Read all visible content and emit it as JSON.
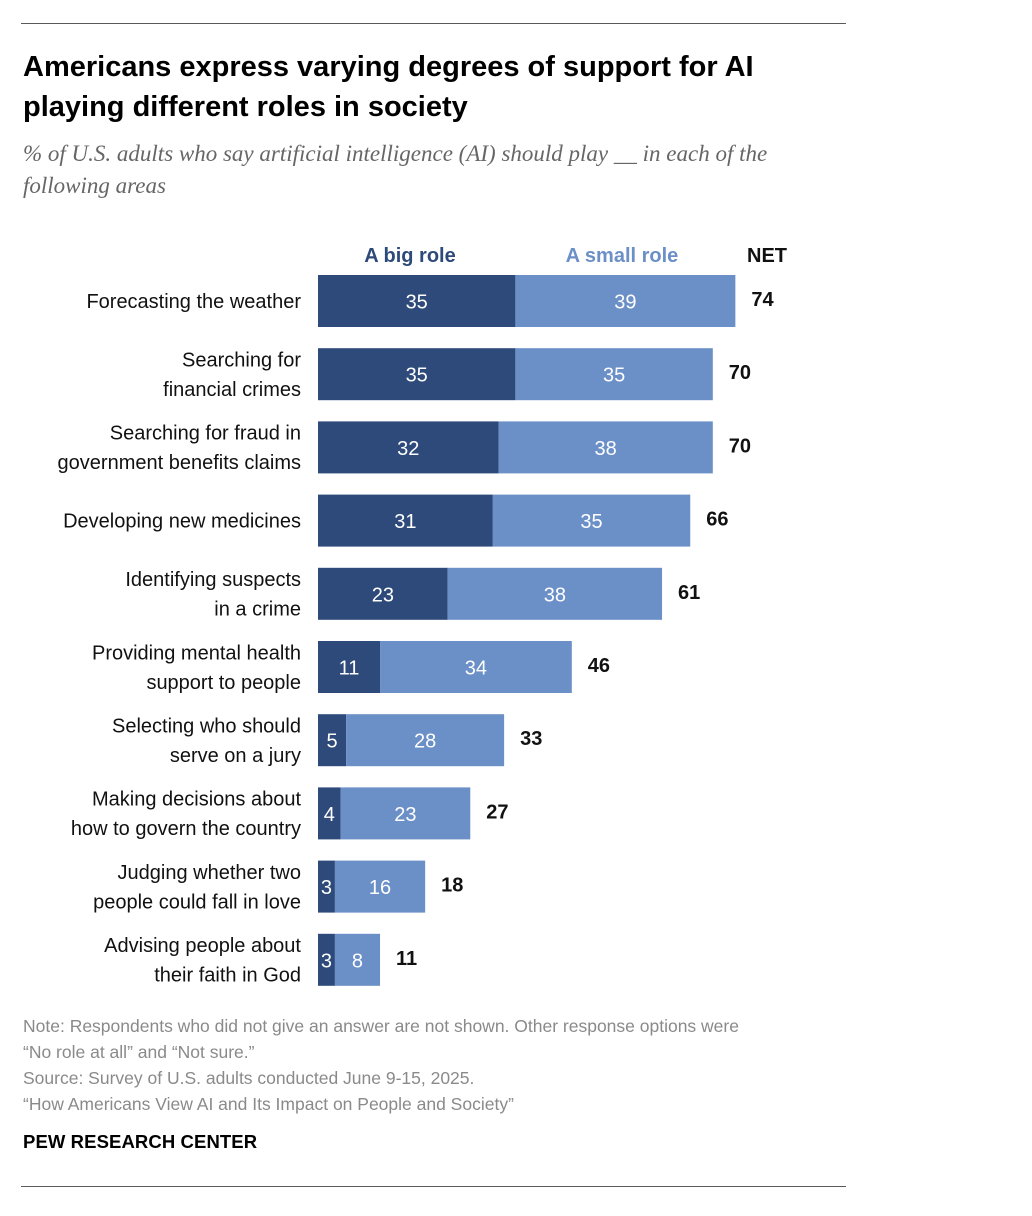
{
  "title": "Americans express varying degrees of support for AI playing different roles in society",
  "subtitle": "% of U.S. adults who say artificial intelligence (AI) should play __ in each of the following areas",
  "chart_data": {
    "type": "bar",
    "orientation": "horizontal",
    "stacked": true,
    "categories": [
      [
        "Forecasting the weather"
      ],
      [
        "Searching for",
        "financial crimes"
      ],
      [
        "Searching for fraud in",
        "government benefits claims"
      ],
      [
        "Developing new medicines"
      ],
      [
        "Identifying suspects",
        "in a crime"
      ],
      [
        "Providing mental health",
        "support to people"
      ],
      [
        "Selecting who should",
        "serve on a jury"
      ],
      [
        "Making decisions about",
        "how to govern the country"
      ],
      [
        "Judging whether two",
        "people could fall in love"
      ],
      [
        "Advising people about",
        "their faith in God"
      ]
    ],
    "series": [
      {
        "name": "A big role",
        "color": "#2e4a7a",
        "values": [
          35,
          35,
          32,
          31,
          23,
          11,
          5,
          4,
          3,
          3
        ]
      },
      {
        "name": "A  small role",
        "color": "#6b8fc7",
        "values": [
          39,
          35,
          38,
          35,
          38,
          34,
          28,
          23,
          16,
          8
        ]
      }
    ],
    "net": {
      "name": "NET",
      "values": [
        74,
        70,
        70,
        66,
        61,
        46,
        33,
        27,
        18,
        11
      ]
    },
    "xlim": [
      0,
      74
    ]
  },
  "notes": [
    "Note: Respondents who did not give an answer are not shown. Other response options were",
    "“No role at all” and “Not sure.”",
    "Source: Survey of U.S. adults conducted June 9-15, 2025.",
    "“How Americans View AI and Its Impact on People and Society”"
  ],
  "brand": "PEW RESEARCH CENTER"
}
